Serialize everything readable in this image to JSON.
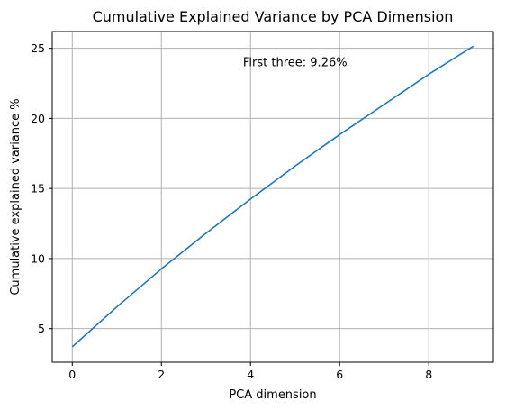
{
  "chart_data": {
    "type": "line",
    "title": "Cumulative Explained Variance by PCA Dimension",
    "xlabel": "PCA dimension",
    "ylabel": "Cumulative explained variance %",
    "x": [
      0,
      1,
      2,
      3,
      4,
      5,
      6,
      7,
      8,
      9
    ],
    "series": [
      {
        "values": [
          3.7,
          6.55,
          9.26,
          11.8,
          14.25,
          16.6,
          18.85,
          21.0,
          23.15,
          25.15
        ],
        "color": "#1f77b4"
      }
    ],
    "xlim": [
      -0.45,
      9.45
    ],
    "ylim": [
      2.6,
      26.2
    ],
    "xticks": [
      0,
      2,
      4,
      6,
      8
    ],
    "yticks": [
      5,
      10,
      15,
      20,
      25
    ],
    "xtick_labels": [
      "0",
      "2",
      "4",
      "6",
      "8"
    ],
    "ytick_labels": [
      "5",
      "10",
      "15",
      "20",
      "25"
    ],
    "grid": true,
    "annotation": {
      "text": "First three: 9.26%",
      "x": 5.0,
      "y": 24.0
    }
  }
}
